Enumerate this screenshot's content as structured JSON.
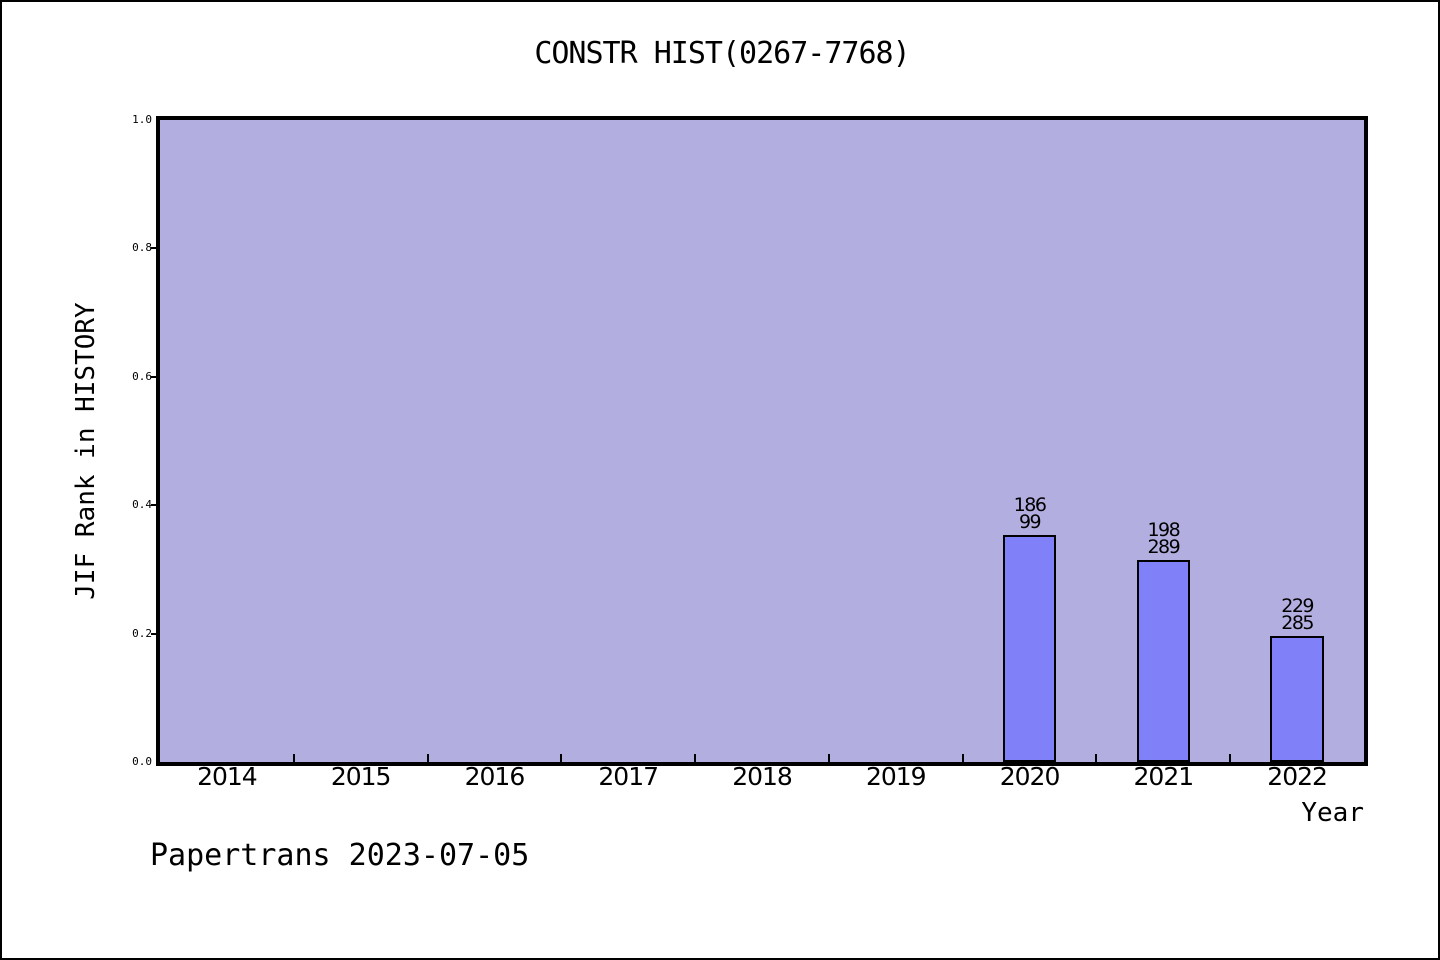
{
  "chart_data": {
    "type": "bar",
    "title": "CONSTR HIST(0267-7768)",
    "xlabel": "Year",
    "ylabel": "JIF Rank in HISTORY",
    "categories": [
      "2014",
      "2015",
      "2016",
      "2017",
      "2018",
      "2019",
      "2020",
      "2021",
      "2022"
    ],
    "values": [
      null,
      null,
      null,
      null,
      null,
      null,
      0.354,
      0.315,
      0.196
    ],
    "bar_labels": [
      null,
      null,
      null,
      null,
      null,
      null,
      [
        "186",
        "99"
      ],
      [
        "198",
        "289"
      ],
      [
        "229",
        "285"
      ]
    ],
    "ylim": [
      0.0,
      1.0
    ],
    "ytick_labels": [
      "0.0",
      "0.2",
      "0.4",
      "0.6",
      "0.8",
      "1.0"
    ],
    "grid": false,
    "legend": null,
    "layout_hints": {
      "bar_width_fraction": 0.4,
      "x_ticks_at_category_boundaries": true,
      "x_tick_direction": "in",
      "y_tick_direction": "out"
    },
    "colors": {
      "plot_background": "#b3aee0",
      "bar_fill": "#8080f8",
      "bar_edge": "#000000",
      "axis_frame": "#000000",
      "text": "#000000"
    }
  },
  "footer": {
    "text": "Papertrans 2023-07-05"
  }
}
